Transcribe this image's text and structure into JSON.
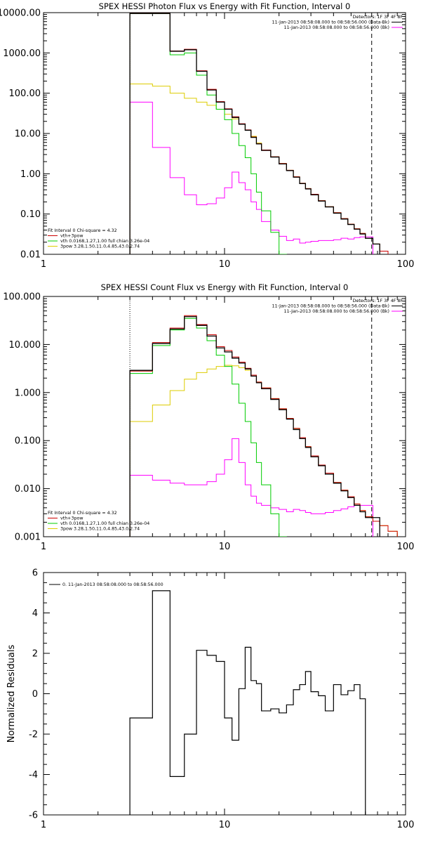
{
  "chart_data": [
    {
      "type": "line",
      "title": "SPEX HESSI Photon Flux vs Energy with Fit Function, Interval 0",
      "xscale": "log",
      "yscale": "log",
      "xlim": [
        1,
        100
      ],
      "ylim": [
        0.01,
        10000
      ],
      "xticks": [
        "1",
        "10",
        "100"
      ],
      "yticks": [
        "0.01",
        "0.10",
        "1.00",
        "10.00",
        "100.00",
        "1000.00",
        "10000.00"
      ],
      "vlines": {
        "dotted": 3,
        "dashed": 65
      },
      "legend_top": {
        "header": "Detectors: 1F 3F 4F 8F",
        "entries": [
          {
            "text": "11-Jan-2013 08:58:08.000 to 08:58:56.000 (Data-Bk)",
            "color": "#000000"
          },
          {
            "text": "11-Jan-2013 08:58:08.000 to 08:58:56.000 (Bk)",
            "color": "#ff00ff"
          }
        ]
      },
      "legend_bottom": {
        "header": "Fit Interval 0  Chi-square = 4.32",
        "entries": [
          {
            "text": "vth+3pow",
            "color": "#cc0000"
          },
          {
            "text": "vth 0.0168,1.27,1.00  full chian 3.26e-04",
            "color": "#00cc00"
          },
          {
            "text": "3pow 3.28,1.50,11.0,4.85,43.0,2.74",
            "color": "#ddcc00"
          }
        ]
      },
      "edges": [
        3,
        4,
        5,
        6,
        7,
        8,
        9,
        10,
        11,
        12,
        13,
        14,
        15,
        16,
        18,
        20,
        22,
        24,
        26,
        28,
        30,
        33,
        36,
        40,
        44,
        48,
        52,
        56,
        60,
        66,
        72,
        80,
        90,
        100
      ],
      "series": [
        {
          "name": "Data-Bk",
          "color": "#000000",
          "width": 1.3,
          "values": [
            9500,
            9500,
            1100,
            1200,
            350,
            120,
            60,
            40,
            25,
            17,
            12,
            8,
            5.5,
            3.8,
            2.6,
            1.75,
            1.2,
            0.82,
            0.57,
            0.42,
            0.3,
            0.21,
            0.15,
            0.105,
            0.075,
            0.055,
            0.042,
            0.032,
            0.025,
            0.018,
            null,
            null,
            null
          ]
        },
        {
          "name": "vth+3pow",
          "color": "#cc0000",
          "width": 1.0,
          "values": [
            9600,
            9600,
            1120,
            1230,
            360,
            125,
            62,
            41,
            26,
            17.5,
            12.3,
            8.2,
            5.6,
            3.9,
            2.65,
            1.8,
            1.22,
            0.84,
            0.58,
            0.43,
            0.31,
            0.215,
            0.152,
            0.108,
            0.077,
            0.056,
            0.043,
            0.033,
            0.025,
            0.018,
            0.012,
            0.009,
            null
          ]
        },
        {
          "name": "vth",
          "color": "#00cc00",
          "width": 1.0,
          "values": [
            9500,
            9500,
            900,
            1000,
            280,
            90,
            40,
            22,
            10,
            5,
            2.5,
            1.0,
            0.35,
            0.12,
            0.035,
            0.01,
            null,
            null,
            null,
            null,
            null,
            null,
            null,
            null,
            null,
            null,
            null,
            null,
            null,
            null,
            null,
            null,
            null
          ]
        },
        {
          "name": "3pow",
          "color": "#ddcc00",
          "width": 1.0,
          "values": [
            170,
            150,
            100,
            75,
            60,
            50,
            40,
            30,
            23,
            17,
            12,
            8.5,
            5.8,
            3.9,
            2.65,
            1.8,
            1.22,
            0.84,
            0.58,
            0.43,
            0.31,
            0.215,
            0.152,
            0.108,
            0.077,
            0.056,
            0.043,
            0.033,
            0.025,
            0.018,
            0.012,
            0.009,
            null
          ]
        },
        {
          "name": "Bk",
          "color": "#ff00ff",
          "width": 1.0,
          "values": [
            60,
            4.5,
            0.8,
            0.3,
            0.17,
            0.18,
            0.25,
            0.45,
            1.1,
            0.6,
            0.4,
            0.2,
            0.13,
            0.065,
            0.04,
            0.028,
            0.022,
            0.024,
            0.019,
            0.02,
            0.021,
            0.022,
            0.022,
            0.023,
            0.025,
            0.024,
            0.026,
            0.027,
            0.027,
            null,
            null,
            null,
            null
          ]
        }
      ]
    },
    {
      "type": "line",
      "title": "SPEX HESSI Count Flux vs Energy with Fit Function, Interval 0",
      "xscale": "log",
      "yscale": "log",
      "xlim": [
        1,
        100
      ],
      "ylim": [
        0.001,
        100
      ],
      "xticks": [
        "1",
        "10",
        "100"
      ],
      "yticks": [
        "0.001",
        "0.010",
        "0.100",
        "1.000",
        "10.000",
        "100.000"
      ],
      "vlines": {
        "dotted": 3,
        "dashed": 65
      },
      "legend_top": {
        "header": "Detectors: 1F 3F 4F 8F",
        "entries": [
          {
            "text": "11-Jan-2013 08:58:08.000 to 08:58:56.000 (Data-Bk)",
            "color": "#000000"
          },
          {
            "text": "11-Jan-2013 08:58:08.000 to 08:58:56.000 (Bk)",
            "color": "#ff00ff"
          }
        ]
      },
      "legend_bottom": {
        "header": "Fit Interval 0  Chi-square = 4.32",
        "entries": [
          {
            "text": "vth+3pow",
            "color": "#cc0000"
          },
          {
            "text": "vth 0.0168,1.27,1.00  full chian 3.26e-04",
            "color": "#00cc00"
          },
          {
            "text": "3pow 3.28,1.50,11.0,4.85,43.0,2.74",
            "color": "#ddcc00"
          }
        ]
      },
      "edges": [
        3,
        4,
        5,
        6,
        7,
        8,
        9,
        10,
        11,
        12,
        13,
        14,
        15,
        16,
        18,
        20,
        22,
        24,
        26,
        28,
        30,
        33,
        36,
        40,
        44,
        48,
        52,
        56,
        60,
        66,
        72,
        80,
        90,
        100
      ],
      "series": [
        {
          "name": "Data-Bk",
          "color": "#000000",
          "width": 1.3,
          "values": [
            2.9,
            10.5,
            21,
            38,
            25,
            15,
            8.5,
            7,
            5.2,
            4.1,
            3.1,
            2.2,
            1.6,
            1.2,
            0.72,
            0.44,
            0.28,
            0.17,
            0.11,
            0.072,
            0.046,
            0.03,
            0.02,
            0.013,
            0.009,
            0.0065,
            0.0045,
            0.0033,
            0.0025,
            0.0025,
            null,
            null,
            null
          ]
        },
        {
          "name": "vth+3pow",
          "color": "#cc0000",
          "width": 1.0,
          "values": [
            2.8,
            11,
            22,
            40,
            26,
            16,
            9,
            7.5,
            5.5,
            4.3,
            3.2,
            2.3,
            1.65,
            1.25,
            0.75,
            0.46,
            0.29,
            0.18,
            0.115,
            0.075,
            0.048,
            0.031,
            0.021,
            0.0135,
            0.0093,
            0.0068,
            0.0048,
            0.0035,
            0.0026,
            0.0021,
            0.0017,
            0.0013,
            null
          ]
        },
        {
          "name": "vth",
          "color": "#00cc00",
          "width": 1.0,
          "values": [
            2.5,
            9.5,
            20,
            35,
            22,
            12,
            6,
            3.5,
            1.5,
            0.6,
            0.25,
            0.09,
            0.035,
            0.012,
            0.003,
            0.001,
            null,
            null,
            null,
            null,
            null,
            null,
            null,
            null,
            null,
            null,
            null,
            null,
            null,
            null,
            null,
            null,
            null
          ]
        },
        {
          "name": "3pow",
          "color": "#ddcc00",
          "width": 1.0,
          "values": [
            0.25,
            0.55,
            1.1,
            1.9,
            2.6,
            3.1,
            3.5,
            3.7,
            3.6,
            3.3,
            2.9,
            2.3,
            1.65,
            1.25,
            0.75,
            0.46,
            0.29,
            0.18,
            0.115,
            0.075,
            0.048,
            0.031,
            0.021,
            0.0135,
            0.0093,
            0.0068,
            0.0048,
            0.0035,
            0.0026,
            0.0021,
            0.0017,
            0.0013,
            null
          ]
        },
        {
          "name": "Bk",
          "color": "#ff00ff",
          "width": 1.0,
          "values": [
            0.019,
            0.015,
            0.013,
            0.012,
            0.012,
            0.014,
            0.02,
            0.04,
            0.11,
            0.035,
            0.012,
            0.007,
            0.005,
            0.0045,
            0.004,
            0.0037,
            0.0033,
            0.0037,
            0.0035,
            0.0032,
            0.003,
            0.003,
            0.0032,
            0.0035,
            0.0038,
            0.0042,
            0.0045,
            0.0045,
            0.0045,
            null,
            null,
            null,
            null
          ]
        }
      ]
    },
    {
      "type": "line",
      "title": "",
      "ylabel": "Normalized Residuals",
      "xscale": "log",
      "yscale": "linear",
      "xlim": [
        1,
        100
      ],
      "ylim": [
        -6,
        6
      ],
      "xticks": [
        "1",
        "10",
        "100"
      ],
      "yticks": [
        "-6",
        "-4",
        "-2",
        "0",
        "2",
        "4",
        "6"
      ],
      "legend": {
        "entries": [
          {
            "text": "0. 11-Jan-2013 08:58:08.000 to 08:58:56.000",
            "color": "#000000"
          }
        ]
      },
      "edges": [
        3,
        4,
        5,
        6,
        7,
        8,
        9,
        10,
        11,
        12,
        13,
        14,
        15,
        16,
        18,
        20,
        22,
        24,
        26,
        28,
        30,
        33,
        36,
        40,
        44,
        48,
        52,
        56,
        60,
        66
      ],
      "series": [
        {
          "name": "",
          "color": "#000000",
          "width": 1.2,
          "values": [
            -1.2,
            5.1,
            -4.1,
            -2.0,
            2.15,
            1.9,
            1.6,
            -1.2,
            -2.3,
            0.25,
            2.3,
            0.65,
            0.5,
            -0.85,
            -0.75,
            -0.95,
            -0.55,
            0.2,
            0.45,
            1.1,
            0.1,
            -0.1,
            -0.85,
            0.45,
            -0.05,
            0.15,
            0.45,
            -0.25,
            null
          ]
        }
      ]
    }
  ]
}
